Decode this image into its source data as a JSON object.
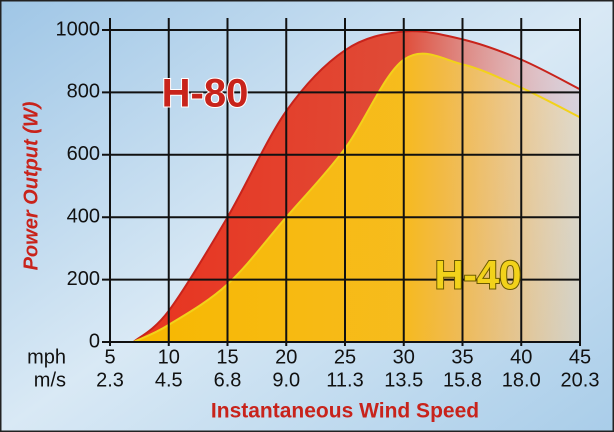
{
  "chart_data": {
    "type": "area",
    "y_label": "Power Output (W)",
    "x_label": "Instantaneous Wind Speed",
    "x_unit_label": "mph",
    "x_secondary_unit_label": "m/s",
    "x": [
      7,
      10,
      15,
      20,
      25,
      30,
      35,
      40,
      45
    ],
    "series": [
      {
        "name": "H-80",
        "color": "#c8231b",
        "values": [
          0,
          100,
          400,
          740,
          935,
          995,
          970,
          905,
          810
        ]
      },
      {
        "name": "H-40",
        "color": "#f2d21a",
        "values": [
          0,
          55,
          185,
          400,
          620,
          905,
          890,
          815,
          720
        ]
      }
    ],
    "xlim": [
      5,
      45
    ],
    "xticks": [
      5,
      10,
      15,
      20,
      25,
      30,
      35,
      40,
      45
    ],
    "x_secondary_tick_labels": [
      "2.3",
      "4.5",
      "6.8",
      "9.0",
      "11.3",
      "13.5",
      "15.8",
      "18.0",
      "20.3"
    ],
    "ylim": [
      0,
      1000
    ],
    "yticks": [
      0,
      200,
      400,
      600,
      800,
      1000
    ],
    "grid": true
  }
}
